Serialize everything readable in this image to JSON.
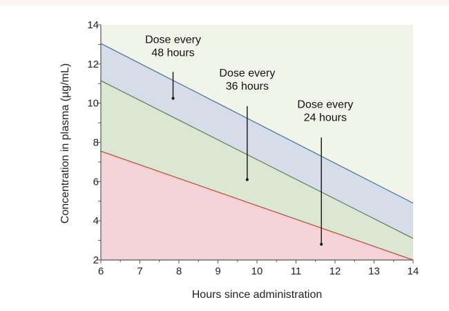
{
  "chart_data": {
    "type": "area",
    "xlabel": "Hours since administration",
    "ylabel": "Concentration in plasma (µg/mL)",
    "xlim": [
      6,
      14
    ],
    "ylim": [
      2,
      14
    ],
    "x_ticks": [
      6,
      7,
      8,
      9,
      10,
      11,
      12,
      13,
      14
    ],
    "y_ticks": [
      2,
      4,
      6,
      8,
      10,
      12,
      14
    ],
    "grid": false,
    "series": [
      {
        "key": "s48",
        "x": [
          6,
          14
        ],
        "y": [
          13.05,
          4.9
        ],
        "line_color": "#4a7ab5",
        "fill_color": "#d6dde9"
      },
      {
        "key": "s36",
        "x": [
          6,
          14
        ],
        "y": [
          11.15,
          3.1
        ],
        "line_color": "#5b8a4b",
        "fill_color": "#dbe7d3"
      },
      {
        "key": "s24",
        "x": [
          6,
          14
        ],
        "y": [
          7.55,
          2.0
        ],
        "line_color": "#d6453d",
        "fill_color": "#f4d4d8"
      }
    ],
    "background_fill": "#f1f4e8",
    "annotations": [
      {
        "key": "a48",
        "lines": [
          "Dose every",
          "48 hours"
        ],
        "text_x": 7.85,
        "text_y_top": 13.2,
        "line_from": 11.6,
        "point": [
          7.85,
          10.25
        ]
      },
      {
        "key": "a36",
        "lines": [
          "Dose every",
          "36 hours"
        ],
        "text_x": 9.75,
        "text_y_top": 11.5,
        "line_from": 9.85,
        "point": [
          9.75,
          6.1
        ]
      },
      {
        "key": "a24",
        "lines": [
          "Dose every",
          "24 hours"
        ],
        "text_x": 11.75,
        "text_y_top": 9.9,
        "line_from": 8.25,
        "point": [
          11.65,
          2.8
        ]
      }
    ]
  }
}
